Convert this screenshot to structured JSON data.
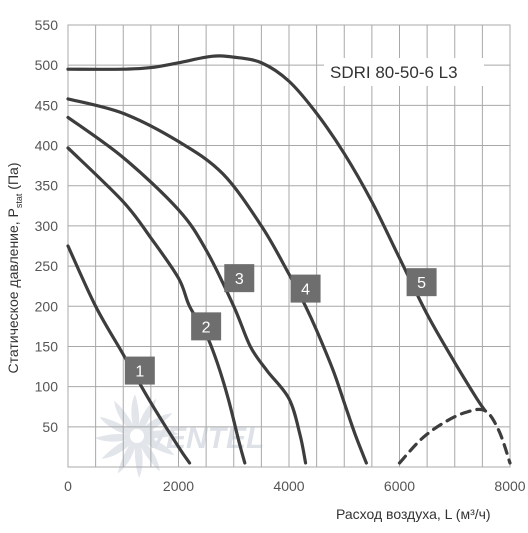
{
  "chart_data": {
    "type": "line",
    "title": "SDRI 80-50-6 L3",
    "xlabel": "Расход воздуха, L (м³/ч)",
    "ylabel": "Статическое давление, P",
    "ylabel_sub": "stat",
    "ylabel_unit": " (Па)",
    "xlim": [
      0,
      8000
    ],
    "ylim": [
      0,
      550
    ],
    "x_ticks": [
      0,
      2000,
      4000,
      6000,
      8000
    ],
    "y_ticks": [
      50,
      100,
      150,
      200,
      250,
      300,
      350,
      400,
      450,
      500,
      550
    ],
    "grid": true,
    "watermark": "VENTEL",
    "colors": {
      "curve": "#3d3d3d",
      "grid": "#a8a8a8",
      "label_box": "#6e6e6e"
    },
    "series": [
      {
        "name": "1",
        "label_at": [
          1300,
          120
        ],
        "x": [
          0,
          500,
          1000,
          1500,
          2000,
          2200
        ],
        "y": [
          275,
          200,
          140,
          80,
          25,
          5
        ]
      },
      {
        "name": "2",
        "label_at": [
          2500,
          175
        ],
        "x": [
          0,
          1000,
          1500,
          2000,
          2200,
          2500,
          2700,
          2900,
          3100,
          3200
        ],
        "y": [
          397,
          330,
          285,
          235,
          200,
          165,
          130,
          85,
          30,
          5
        ]
      },
      {
        "name": "3",
        "label_at": [
          3100,
          235
        ],
        "x": [
          0,
          1000,
          2000,
          2500,
          3000,
          3300,
          3600,
          4000,
          4200,
          4300
        ],
        "y": [
          435,
          385,
          320,
          270,
          200,
          150,
          120,
          85,
          40,
          5
        ]
      },
      {
        "name": "4",
        "label_at": [
          4300,
          222
        ],
        "x": [
          0,
          1000,
          2000,
          2800,
          3500,
          4000,
          4300,
          4500,
          4800,
          5000,
          5200,
          5400
        ],
        "y": [
          458,
          440,
          405,
          365,
          300,
          240,
          200,
          170,
          120,
          80,
          40,
          5
        ]
      },
      {
        "name": "5",
        "label_at": [
          6400,
          230
        ],
        "x": [
          0,
          1000,
          1500,
          2000,
          2600,
          3000,
          3500,
          4000,
          4500,
          5000,
          5500,
          6000,
          6500,
          7000,
          7400,
          7550
        ],
        "y": [
          495,
          495,
          497,
          503,
          511,
          510,
          503,
          480,
          440,
          390,
          330,
          260,
          190,
          130,
          85,
          70
        ]
      },
      {
        "name": "",
        "dashed": true,
        "x": [
          6000,
          6400,
          6800,
          7200,
          7550,
          7800,
          8000
        ],
        "y": [
          5,
          35,
          55,
          68,
          70,
          45,
          5
        ]
      }
    ]
  }
}
